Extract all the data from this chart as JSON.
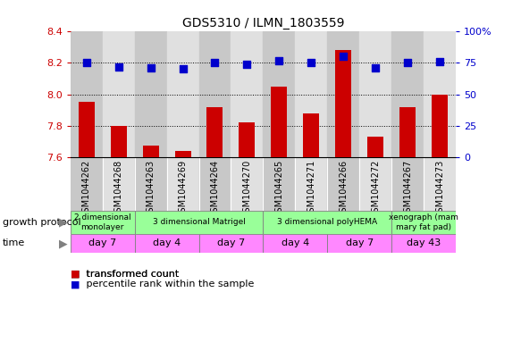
{
  "title": "GDS5310 / ILMN_1803559",
  "samples": [
    "GSM1044262",
    "GSM1044268",
    "GSM1044263",
    "GSM1044269",
    "GSM1044264",
    "GSM1044270",
    "GSM1044265",
    "GSM1044271",
    "GSM1044266",
    "GSM1044272",
    "GSM1044267",
    "GSM1044273"
  ],
  "transformed_count": [
    7.95,
    7.8,
    7.67,
    7.64,
    7.92,
    7.82,
    8.05,
    7.88,
    8.28,
    7.73,
    7.92,
    8.0
  ],
  "percentile_rank": [
    75,
    72,
    71,
    70,
    75,
    74,
    77,
    75,
    80,
    71,
    75,
    76
  ],
  "ylim_left": [
    7.6,
    8.4
  ],
  "ylim_right": [
    0,
    100
  ],
  "yticks_left": [
    7.6,
    7.8,
    8.0,
    8.2,
    8.4
  ],
  "yticks_right": [
    0,
    25,
    50,
    75,
    100
  ],
  "bar_color": "#cc0000",
  "dot_color": "#0000cc",
  "groups": [
    {
      "label": "2 dimensional\nmonolayer",
      "start": 0,
      "end": 2,
      "color": "#99ff99"
    },
    {
      "label": "3 dimensional Matrigel",
      "start": 2,
      "end": 6,
      "color": "#99ff99"
    },
    {
      "label": "3 dimensional polyHEMA",
      "start": 6,
      "end": 10,
      "color": "#99ff99"
    },
    {
      "label": "xenograph (mam\nmary fat pad)",
      "start": 10,
      "end": 12,
      "color": "#99ff99"
    }
  ],
  "time_groups": [
    {
      "label": "day 7",
      "start": 0,
      "end": 2,
      "color": "#ff88ff"
    },
    {
      "label": "day 4",
      "start": 2,
      "end": 4,
      "color": "#ff88ff"
    },
    {
      "label": "day 7",
      "start": 4,
      "end": 6,
      "color": "#ff88ff"
    },
    {
      "label": "day 4",
      "start": 6,
      "end": 8,
      "color": "#ff88ff"
    },
    {
      "label": "day 7",
      "start": 8,
      "end": 10,
      "color": "#ff88ff"
    },
    {
      "label": "day 43",
      "start": 10,
      "end": 12,
      "color": "#ff88ff"
    }
  ],
  "left_label_color": "#cc0000",
  "right_label_color": "#0000cc",
  "bar_width": 0.5,
  "dot_size": 35,
  "col_bg_even": "#c8c8c8",
  "col_bg_odd": "#e0e0e0"
}
